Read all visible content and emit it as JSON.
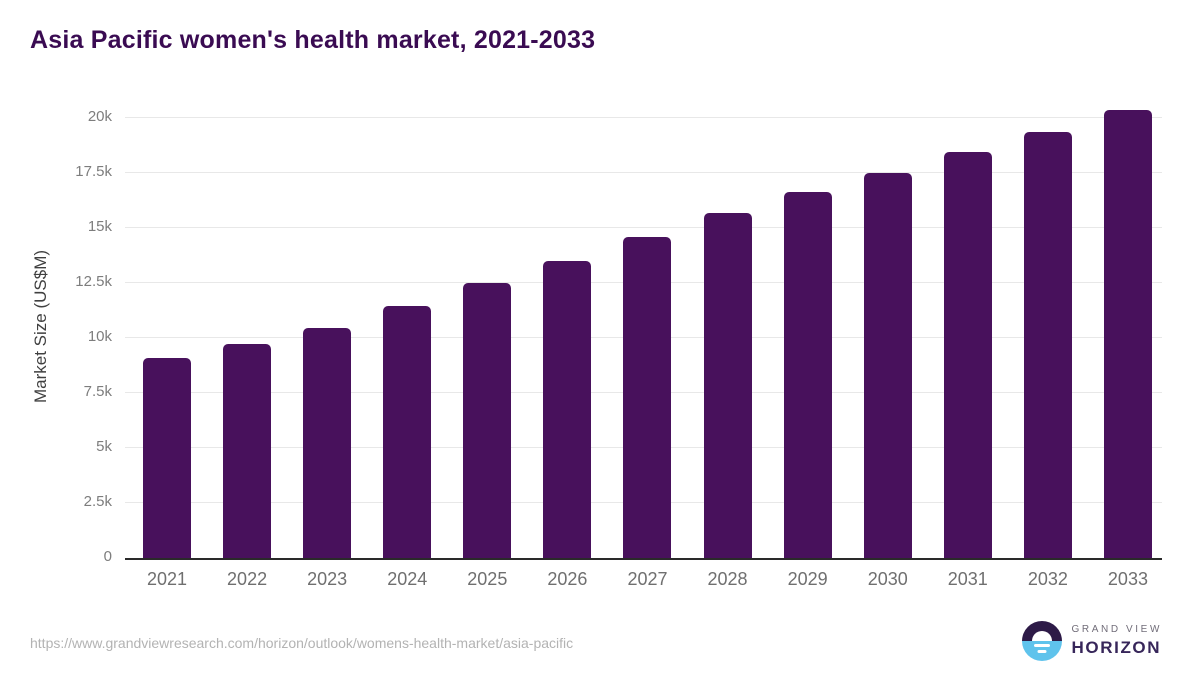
{
  "title": "Asia Pacific women's health market, 2021-2033",
  "source_url": "https://www.grandviewresearch.com/horizon/outlook/womens-health-market/asia-pacific",
  "logo": {
    "line1": "GRAND VIEW",
    "line2": "HORIZON"
  },
  "colors": {
    "bar": "#48115c",
    "title": "#3a0b52",
    "gridline": "#e8e8e8",
    "axis_line": "#2a2a2a",
    "y_tick": "#7d7d7d",
    "x_tick": "#6f6f6f",
    "logo_blue": "#5fc3ec",
    "logo_dark": "#2d1a47"
  },
  "chart_data": {
    "type": "bar",
    "title": "Asia Pacific women's health market, 2021-2033",
    "categories": [
      "2021",
      "2022",
      "2023",
      "2024",
      "2025",
      "2026",
      "2027",
      "2028",
      "2029",
      "2030",
      "2031",
      "2032",
      "2033"
    ],
    "values": [
      9070,
      9700,
      10460,
      11430,
      12500,
      13490,
      14580,
      15660,
      16610,
      17500,
      18440,
      19360,
      20320
    ],
    "xlabel": "",
    "ylabel": "Market Size (US$M)",
    "ylim": [
      0,
      20000
    ],
    "yticks": [
      {
        "value": 0,
        "label": "0"
      },
      {
        "value": 2500,
        "label": "2.5k"
      },
      {
        "value": 5000,
        "label": "5k"
      },
      {
        "value": 7500,
        "label": "7.5k"
      },
      {
        "value": 10000,
        "label": "10k"
      },
      {
        "value": 12500,
        "label": "12.5k"
      },
      {
        "value": 15000,
        "label": "15k"
      },
      {
        "value": 17500,
        "label": "17.5k"
      },
      {
        "value": 20000,
        "label": "20k"
      }
    ],
    "grid": true,
    "legend": false,
    "bar_color": "#48115c"
  }
}
